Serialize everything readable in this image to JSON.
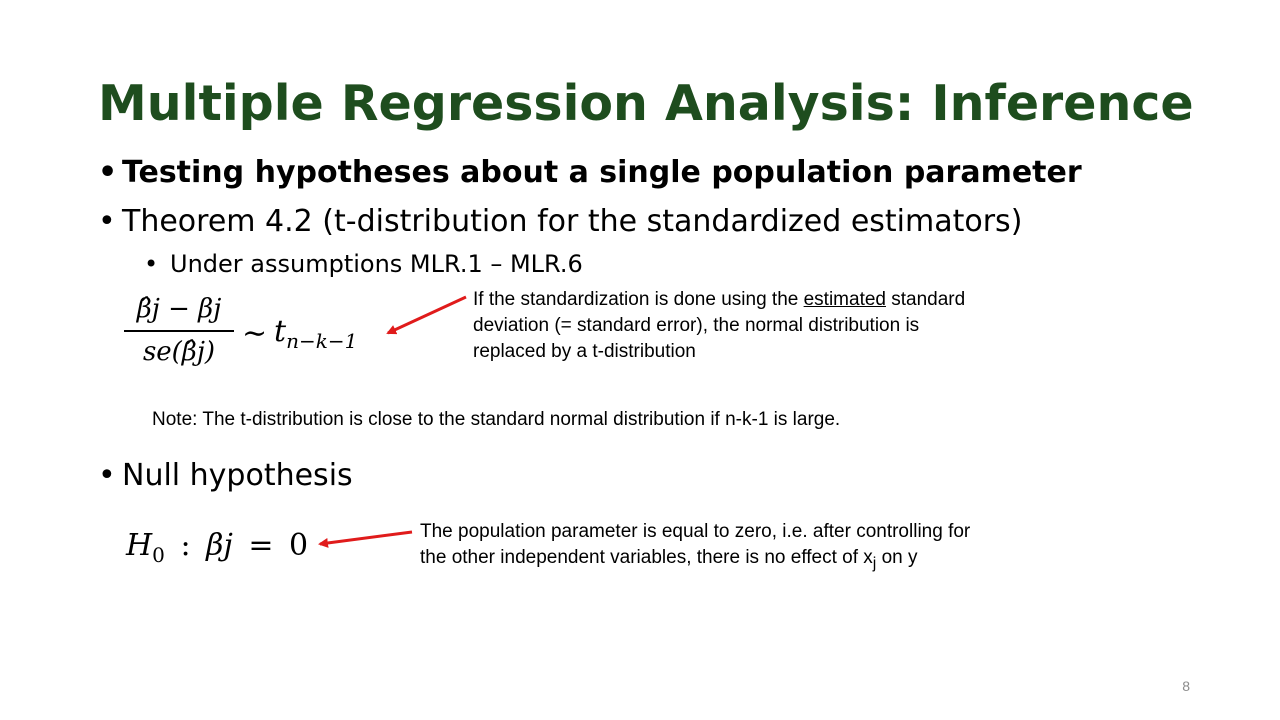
{
  "slide": {
    "title": "Multiple Regression Analysis: Inference",
    "bullets": {
      "testing": "Testing hypotheses about a single population parameter",
      "theorem": "Theorem 4.2 (t-distribution for the standardized estimators)",
      "assumptions": "Under assumptions MLR.1 – MLR.6",
      "null": "Null hypothesis"
    },
    "formula1": {
      "numerator": "β̂j − βj",
      "denominator": "se(β̂j)",
      "tilde": "∼",
      "t": "t",
      "t_sub": "n−k−1"
    },
    "note_standardization": {
      "part1": "If the standardization is done using the ",
      "underlined": "estimated",
      "part2": " standard deviation (= standard error), the normal distribution is replaced by a t-distribution"
    },
    "note_t_close": "Note: The t-distribution is close to the standard normal distribution if n-k-1 is large.",
    "formula2": {
      "h": "H",
      "h_sub": "0",
      "colon": ":",
      "beta": "βj",
      "equals": "=",
      "zero": "0"
    },
    "note_null": {
      "part1": "The population parameter is equal to zero, i.e. after controlling for the other independent variables, there is no effect of x",
      "sub": "j",
      "part2": " on y"
    },
    "page_number": "8",
    "colors": {
      "title": "#1e4d1e",
      "arrow": "#e01b1b",
      "page_number": "#8c8c8c"
    }
  }
}
